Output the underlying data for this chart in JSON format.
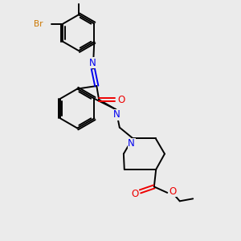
{
  "bg_color": "#ebebeb",
  "bond_color": "#000000",
  "N_color": "#0000ee",
  "O_color": "#ee0000",
  "Br_color": "#cc7700",
  "line_width": 1.4,
  "figsize": [
    3.0,
    3.0
  ],
  "dpi": 100,
  "xlim": [
    0,
    10
  ],
  "ylim": [
    0,
    10
  ]
}
